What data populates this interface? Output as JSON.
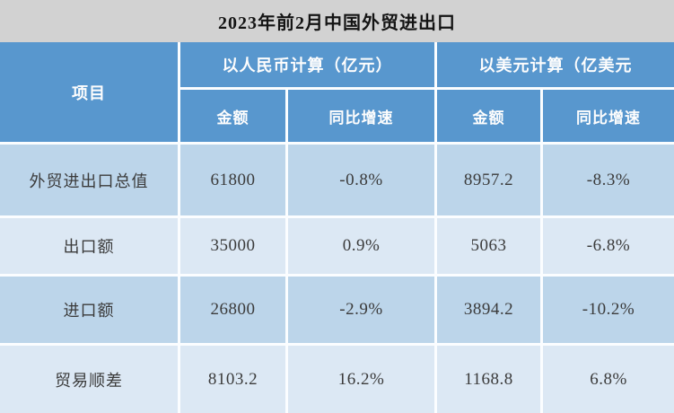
{
  "title": "2023年前2月中国外贸进出口",
  "colors": {
    "title_bar_bg": "#d2d2d2",
    "header_blue": "#5897ce",
    "row_medium_blue": "#bcd5ea",
    "row_light_blue": "#dce8f4",
    "separator_white": "#fbfdff",
    "header_text": "#fdfdfd",
    "data_text": "#3b3b3b"
  },
  "table": {
    "corner_header": "项目",
    "group_headers": [
      "以人民币计算（亿元）",
      "以美元计算（亿美元"
    ],
    "sub_headers": [
      "金额",
      "同比增速",
      "金额",
      "同比增速"
    ],
    "rows": [
      {
        "label": "外贸进出口总值",
        "values": [
          "61800",
          "-0.8%",
          "8957.2",
          "-8.3%"
        ]
      },
      {
        "label": "出口额",
        "values": [
          "35000",
          "0.9%",
          "5063",
          "-6.8%"
        ]
      },
      {
        "label": "进口额",
        "values": [
          "26800",
          "-2.9%",
          "3894.2",
          "-10.2%"
        ]
      },
      {
        "label": "贸易顺差",
        "values": [
          "8103.2",
          "16.2%",
          "1168.8",
          "6.8%"
        ]
      }
    ]
  },
  "chart_data": {
    "type": "table",
    "title": "2023年前2月中国外贸进出口",
    "column_groups": [
      {
        "label": "项目",
        "span": 1
      },
      {
        "label": "以人民币计算（亿元）",
        "span": 2
      },
      {
        "label": "以美元计算（亿美元",
        "span": 2
      }
    ],
    "columns": [
      "项目",
      "金额（亿元）",
      "同比增速（人民币）",
      "金额（亿美元）",
      "同比增速（美元）"
    ],
    "rows": [
      [
        "外贸进出口总值",
        61800,
        "-0.8%",
        8957.2,
        "-8.3%"
      ],
      [
        "出口额",
        35000,
        "0.9%",
        5063,
        "-6.8%"
      ],
      [
        "进口额",
        26800,
        "-2.9%",
        3894.2,
        "-10.2%"
      ],
      [
        "贸易顺差",
        8103.2,
        "16.2%",
        1168.8,
        "6.8%"
      ]
    ]
  }
}
